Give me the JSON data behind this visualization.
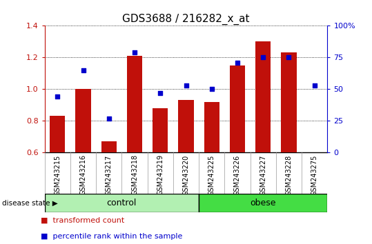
{
  "title": "GDS3688 / 216282_x_at",
  "samples": [
    "GSM243215",
    "GSM243216",
    "GSM243217",
    "GSM243218",
    "GSM243219",
    "GSM243220",
    "GSM243225",
    "GSM243226",
    "GSM243227",
    "GSM243228",
    "GSM243275"
  ],
  "transformed_count": [
    0.83,
    1.0,
    0.67,
    1.21,
    0.88,
    0.93,
    0.92,
    1.15,
    1.3,
    1.23,
    0.6
  ],
  "percentile_rank": [
    44,
    65,
    27,
    79,
    47,
    53,
    50,
    71,
    75,
    75,
    53
  ],
  "ylim_left": [
    0.6,
    1.4
  ],
  "ylim_right": [
    0,
    100
  ],
  "yticks_left": [
    0.6,
    0.8,
    1.0,
    1.2,
    1.4
  ],
  "yticks_right": [
    0,
    25,
    50,
    75,
    100
  ],
  "bar_color": "#C0100A",
  "dot_color": "#0000CC",
  "control_label": "control",
  "obese_label": "obese",
  "disease_state_label": "disease state",
  "legend_bar_label": "transformed count",
  "legend_dot_label": "percentile rank within the sample",
  "background_color": "#ffffff",
  "tick_area_color": "#cccccc",
  "control_bg": "#b2f0b2",
  "obese_bg": "#44dd44",
  "n_control": 6,
  "bar_width": 0.6,
  "title_fontsize": 11,
  "tick_fontsize": 7,
  "legend_fontsize": 8
}
